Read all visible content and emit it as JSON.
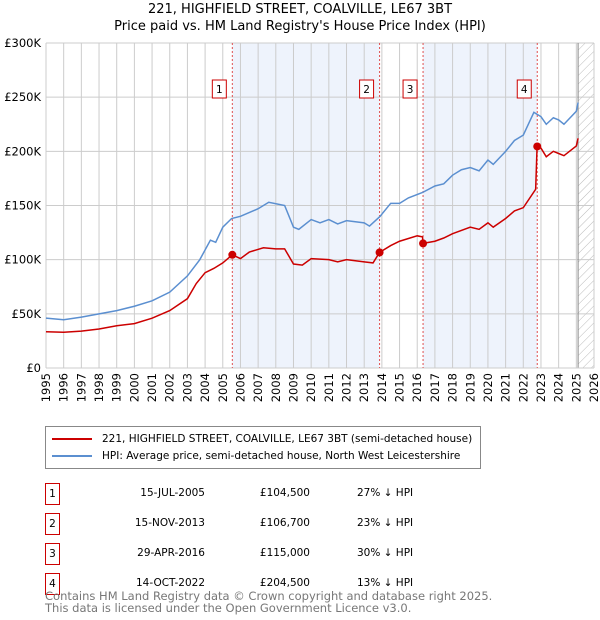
{
  "chart_data": {
    "type": "line",
    "title": "221, HIGHFIELD STREET, COALVILLE, LE67 3BT",
    "subtitle": "Price paid vs. HM Land Registry's House Price Index (HPI)",
    "xlim": [
      1995,
      2026
    ],
    "ylim": [
      0,
      300000
    ],
    "yticks": [
      {
        "v": 0,
        "label": "£0"
      },
      {
        "v": 50000,
        "label": "£50K"
      },
      {
        "v": 100000,
        "label": "£100K"
      },
      {
        "v": 150000,
        "label": "£150K"
      },
      {
        "v": 200000,
        "label": "£200K"
      },
      {
        "v": 250000,
        "label": "£250K"
      },
      {
        "v": 300000,
        "label": "£300K"
      }
    ],
    "xticks": [
      "1995",
      "1996",
      "1997",
      "1998",
      "1999",
      "2000",
      "2001",
      "2002",
      "2003",
      "2004",
      "2005",
      "2006",
      "2007",
      "2008",
      "2009",
      "2010",
      "2011",
      "2012",
      "2013",
      "2014",
      "2015",
      "2016",
      "2017",
      "2018",
      "2019",
      "2020",
      "2021",
      "2022",
      "2023",
      "2024",
      "2025",
      "2026"
    ],
    "grid": true,
    "forecast_start": 2025.1,
    "series": [
      {
        "name": "221, HIGHFIELD STREET, COALVILLE, LE67 3BT (semi-detached house)",
        "color": "#cc0000",
        "points": [
          [
            1995,
            33500
          ],
          [
            1996,
            33000
          ],
          [
            1997,
            34000
          ],
          [
            1998,
            36000
          ],
          [
            1999,
            39000
          ],
          [
            2000,
            41000
          ],
          [
            2001,
            46000
          ],
          [
            2002,
            53000
          ],
          [
            2003,
            64000
          ],
          [
            2003.5,
            78000
          ],
          [
            2004,
            88000
          ],
          [
            2004.5,
            92000
          ],
          [
            2005,
            97000
          ],
          [
            2005.54,
            104500
          ],
          [
            2006,
            101000
          ],
          [
            2006.5,
            107000
          ],
          [
            2007.3,
            111000
          ],
          [
            2008,
            110000
          ],
          [
            2008.5,
            110000
          ],
          [
            2009,
            96000
          ],
          [
            2009.5,
            95000
          ],
          [
            2010,
            101000
          ],
          [
            2011,
            100000
          ],
          [
            2011.5,
            98000
          ],
          [
            2012,
            100000
          ],
          [
            2013,
            98000
          ],
          [
            2013.5,
            97000
          ],
          [
            2013.87,
            106700
          ],
          [
            2014.5,
            113000
          ],
          [
            2015,
            117000
          ],
          [
            2016,
            122000
          ],
          [
            2016.3,
            121000
          ],
          [
            2016.33,
            115000
          ],
          [
            2017,
            117000
          ],
          [
            2017.5,
            120000
          ],
          [
            2018,
            124000
          ],
          [
            2019,
            130000
          ],
          [
            2019.5,
            128000
          ],
          [
            2020,
            134000
          ],
          [
            2020.3,
            130000
          ],
          [
            2021,
            138000
          ],
          [
            2021.5,
            145000
          ],
          [
            2022,
            148000
          ],
          [
            2022.7,
            165000
          ],
          [
            2022.78,
            204500
          ],
          [
            2023,
            203000
          ],
          [
            2023.3,
            195000
          ],
          [
            2023.7,
            200000
          ],
          [
            2024,
            198000
          ],
          [
            2024.3,
            196000
          ],
          [
            2025,
            205000
          ],
          [
            2025.1,
            212000
          ]
        ]
      },
      {
        "name": "HPI: Average price, semi-detached house, North West Leicestershire",
        "color": "#5b8fd0",
        "points": [
          [
            1995,
            46000
          ],
          [
            1996,
            44500
          ],
          [
            1997,
            47000
          ],
          [
            1998,
            50000
          ],
          [
            1999,
            53000
          ],
          [
            2000,
            57000
          ],
          [
            2001,
            62000
          ],
          [
            2002,
            70000
          ],
          [
            2003,
            85000
          ],
          [
            2003.7,
            100000
          ],
          [
            2004.3,
            118000
          ],
          [
            2004.6,
            116000
          ],
          [
            2005,
            130000
          ],
          [
            2005.5,
            138000
          ],
          [
            2006,
            140000
          ],
          [
            2007,
            147000
          ],
          [
            2007.6,
            153000
          ],
          [
            2008.5,
            150000
          ],
          [
            2009,
            130000
          ],
          [
            2009.3,
            128000
          ],
          [
            2010,
            137000
          ],
          [
            2010.5,
            134000
          ],
          [
            2011,
            137000
          ],
          [
            2011.5,
            133000
          ],
          [
            2012,
            136000
          ],
          [
            2013,
            134000
          ],
          [
            2013.3,
            131000
          ],
          [
            2013.9,
            140000
          ],
          [
            2014.5,
            152000
          ],
          [
            2015,
            152000
          ],
          [
            2015.5,
            157000
          ],
          [
            2016.3,
            162000
          ],
          [
            2017,
            168000
          ],
          [
            2017.5,
            170000
          ],
          [
            2018,
            178000
          ],
          [
            2018.5,
            183000
          ],
          [
            2019,
            185000
          ],
          [
            2019.5,
            182000
          ],
          [
            2020,
            192000
          ],
          [
            2020.3,
            188000
          ],
          [
            2021,
            200000
          ],
          [
            2021.5,
            210000
          ],
          [
            2022,
            215000
          ],
          [
            2022.6,
            236000
          ],
          [
            2023,
            232000
          ],
          [
            2023.3,
            225000
          ],
          [
            2023.7,
            231000
          ],
          [
            2024,
            229000
          ],
          [
            2024.3,
            225000
          ],
          [
            2025,
            237000
          ],
          [
            2025.1,
            245000
          ]
        ]
      }
    ],
    "sales": [
      {
        "n": "1",
        "x": 2005.54,
        "price": 104500,
        "date": "15-JUL-2005",
        "price_label": "£104,500",
        "hpi": "27% ↓ HPI"
      },
      {
        "n": "2",
        "x": 2013.87,
        "price": 106700,
        "date": "15-NOV-2013",
        "price_label": "£106,700",
        "hpi": "23% ↓ HPI"
      },
      {
        "n": "3",
        "x": 2016.33,
        "price": 115000,
        "date": "29-APR-2016",
        "price_label": "£115,000",
        "hpi": "30% ↓ HPI"
      },
      {
        "n": "4",
        "x": 2022.79,
        "price": 204500,
        "date": "14-OCT-2022",
        "price_label": "£204,500",
        "hpi": "13% ↓ HPI"
      }
    ]
  },
  "footer": {
    "line1": "Contains HM Land Registry data © Crown copyright and database right 2025.",
    "line2": "This data is licensed under the Open Government Licence v3.0."
  }
}
